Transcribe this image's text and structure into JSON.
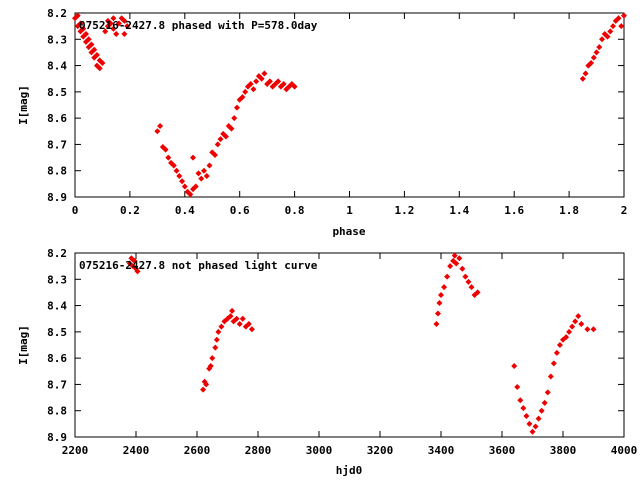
{
  "chart_data": [
    {
      "type": "scatter",
      "title": "075216-2427.8 phased with P=578.0day",
      "xlabel": "phase",
      "ylabel": "I[mag]",
      "xlim": [
        0,
        2
      ],
      "ylim": [
        8.2,
        8.9
      ],
      "y_inverted": true,
      "x_ticks": [
        "0",
        "0.2",
        "0.4",
        "0.6",
        "0.8",
        "1",
        "1.2",
        "1.4",
        "1.6",
        "1.8",
        "2"
      ],
      "y_ticks": [
        "8.2",
        "8.3",
        "8.4",
        "8.5",
        "8.6",
        "8.7",
        "8.8",
        "8.9"
      ],
      "color": "#ee0000",
      "points": [
        [
          0.0,
          8.22
        ],
        [
          0.01,
          8.21
        ],
        [
          0.01,
          8.25
        ],
        [
          0.02,
          8.24
        ],
        [
          0.02,
          8.27
        ],
        [
          0.03,
          8.26
        ],
        [
          0.03,
          8.29
        ],
        [
          0.04,
          8.28
        ],
        [
          0.04,
          8.31
        ],
        [
          0.05,
          8.3
        ],
        [
          0.05,
          8.33
        ],
        [
          0.06,
          8.32
        ],
        [
          0.06,
          8.35
        ],
        [
          0.07,
          8.34
        ],
        [
          0.07,
          8.37
        ],
        [
          0.08,
          8.36
        ],
        [
          0.08,
          8.4
        ],
        [
          0.09,
          8.38
        ],
        [
          0.09,
          8.41
        ],
        [
          0.1,
          8.39
        ],
        [
          0.11,
          8.27
        ],
        [
          0.12,
          8.25
        ],
        [
          0.12,
          8.23
        ],
        [
          0.13,
          8.24
        ],
        [
          0.14,
          8.22
        ],
        [
          0.14,
          8.26
        ],
        [
          0.15,
          8.28
        ],
        [
          0.16,
          8.24
        ],
        [
          0.17,
          8.22
        ],
        [
          0.18,
          8.28
        ],
        [
          0.19,
          8.25
        ],
        [
          0.18,
          8.23
        ],
        [
          0.3,
          8.65
        ],
        [
          0.31,
          8.63
        ],
        [
          0.32,
          8.71
        ],
        [
          0.33,
          8.72
        ],
        [
          0.34,
          8.75
        ],
        [
          0.35,
          8.77
        ],
        [
          0.36,
          8.78
        ],
        [
          0.37,
          8.8
        ],
        [
          0.38,
          8.82
        ],
        [
          0.39,
          8.84
        ],
        [
          0.4,
          8.86
        ],
        [
          0.41,
          8.88
        ],
        [
          0.42,
          8.89
        ],
        [
          0.43,
          8.87
        ],
        [
          0.43,
          8.75
        ],
        [
          0.44,
          8.86
        ],
        [
          0.45,
          8.81
        ],
        [
          0.46,
          8.83
        ],
        [
          0.47,
          8.8
        ],
        [
          0.48,
          8.82
        ],
        [
          0.49,
          8.78
        ],
        [
          0.5,
          8.73
        ],
        [
          0.51,
          8.74
        ],
        [
          0.52,
          8.7
        ],
        [
          0.53,
          8.68
        ],
        [
          0.54,
          8.66
        ],
        [
          0.55,
          8.67
        ],
        [
          0.56,
          8.63
        ],
        [
          0.57,
          8.64
        ],
        [
          0.58,
          8.6
        ],
        [
          0.59,
          8.56
        ],
        [
          0.6,
          8.53
        ],
        [
          0.61,
          8.52
        ],
        [
          0.62,
          8.5
        ],
        [
          0.63,
          8.48
        ],
        [
          0.64,
          8.47
        ],
        [
          0.65,
          8.49
        ],
        [
          0.66,
          8.46
        ],
        [
          0.67,
          8.44
        ],
        [
          0.68,
          8.45
        ],
        [
          0.69,
          8.43
        ],
        [
          0.7,
          8.47
        ],
        [
          0.71,
          8.46
        ],
        [
          0.72,
          8.48
        ],
        [
          0.73,
          8.47
        ],
        [
          0.74,
          8.46
        ],
        [
          0.75,
          8.48
        ],
        [
          0.76,
          8.47
        ],
        [
          0.77,
          8.49
        ],
        [
          0.78,
          8.48
        ],
        [
          0.79,
          8.47
        ],
        [
          0.8,
          8.48
        ],
        [
          1.85,
          8.45
        ],
        [
          1.86,
          8.43
        ],
        [
          1.87,
          8.4
        ],
        [
          1.88,
          8.39
        ],
        [
          1.89,
          8.37
        ],
        [
          1.9,
          8.35
        ],
        [
          1.91,
          8.33
        ],
        [
          1.92,
          8.3
        ],
        [
          1.93,
          8.28
        ],
        [
          1.94,
          8.29
        ],
        [
          1.95,
          8.27
        ],
        [
          1.96,
          8.25
        ],
        [
          1.97,
          8.23
        ],
        [
          1.98,
          8.22
        ],
        [
          1.99,
          8.25
        ],
        [
          2.0,
          8.21
        ]
      ]
    },
    {
      "type": "scatter",
      "title": "075216-2427.8 not phased light curve",
      "xlabel": "hjd0",
      "ylabel": "I[mag]",
      "xlim": [
        2200,
        4000
      ],
      "ylim": [
        8.2,
        8.9
      ],
      "y_inverted": true,
      "x_ticks": [
        "2200",
        "2400",
        "2600",
        "2800",
        "3000",
        "3200",
        "3400",
        "3600",
        "3800",
        "4000"
      ],
      "y_ticks": [
        "8.2",
        "8.3",
        "8.4",
        "8.5",
        "8.6",
        "8.7",
        "8.8",
        "8.9"
      ],
      "color": "#ee0000",
      "points": [
        [
          2380,
          8.24
        ],
        [
          2385,
          8.22
        ],
        [
          2390,
          8.25
        ],
        [
          2395,
          8.23
        ],
        [
          2400,
          8.26
        ],
        [
          2405,
          8.27
        ],
        [
          2620,
          8.72
        ],
        [
          2625,
          8.69
        ],
        [
          2630,
          8.7
        ],
        [
          2640,
          8.64
        ],
        [
          2645,
          8.63
        ],
        [
          2650,
          8.6
        ],
        [
          2660,
          8.56
        ],
        [
          2665,
          8.53
        ],
        [
          2670,
          8.5
        ],
        [
          2680,
          8.48
        ],
        [
          2690,
          8.46
        ],
        [
          2700,
          8.45
        ],
        [
          2710,
          8.44
        ],
        [
          2715,
          8.42
        ],
        [
          2720,
          8.46
        ],
        [
          2730,
          8.45
        ],
        [
          2740,
          8.47
        ],
        [
          2750,
          8.45
        ],
        [
          2760,
          8.48
        ],
        [
          2770,
          8.47
        ],
        [
          2780,
          8.49
        ],
        [
          3385,
          8.47
        ],
        [
          3390,
          8.43
        ],
        [
          3395,
          8.39
        ],
        [
          3400,
          8.36
        ],
        [
          3410,
          8.33
        ],
        [
          3420,
          8.29
        ],
        [
          3430,
          8.25
        ],
        [
          3440,
          8.23
        ],
        [
          3445,
          8.21
        ],
        [
          3450,
          8.24
        ],
        [
          3460,
          8.22
        ],
        [
          3470,
          8.26
        ],
        [
          3480,
          8.29
        ],
        [
          3490,
          8.31
        ],
        [
          3500,
          8.33
        ],
        [
          3510,
          8.36
        ],
        [
          3520,
          8.35
        ],
        [
          3640,
          8.63
        ],
        [
          3650,
          8.71
        ],
        [
          3660,
          8.76
        ],
        [
          3670,
          8.79
        ],
        [
          3680,
          8.82
        ],
        [
          3690,
          8.85
        ],
        [
          3700,
          8.88
        ],
        [
          3710,
          8.86
        ],
        [
          3720,
          8.83
        ],
        [
          3730,
          8.8
        ],
        [
          3740,
          8.77
        ],
        [
          3750,
          8.73
        ],
        [
          3760,
          8.67
        ],
        [
          3770,
          8.62
        ],
        [
          3780,
          8.58
        ],
        [
          3790,
          8.55
        ],
        [
          3800,
          8.53
        ],
        [
          3810,
          8.52
        ],
        [
          3820,
          8.5
        ],
        [
          3830,
          8.48
        ],
        [
          3840,
          8.46
        ],
        [
          3850,
          8.44
        ],
        [
          3860,
          8.47
        ],
        [
          3880,
          8.49
        ],
        [
          3900,
          8.49
        ]
      ]
    }
  ]
}
